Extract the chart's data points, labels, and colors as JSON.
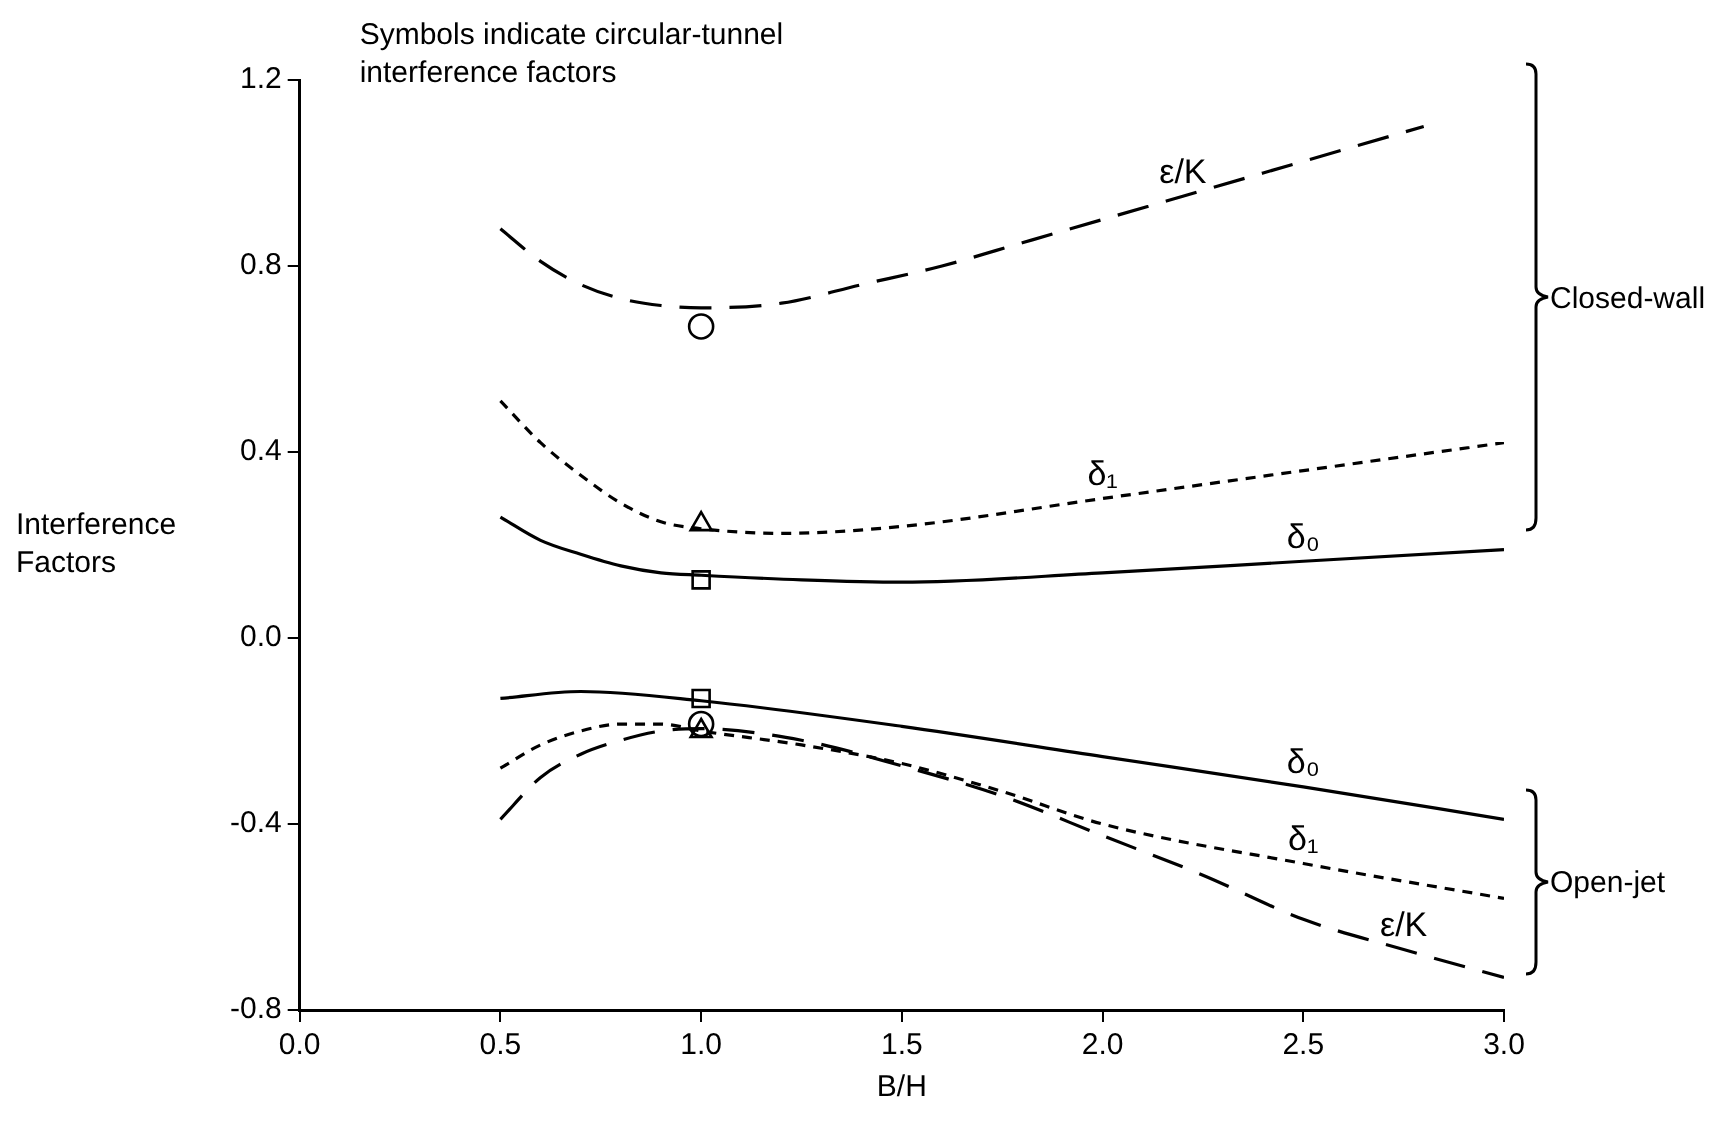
{
  "chart_data": {
    "type": "line",
    "xlabel": "B/H",
    "ylabel": "Interference\nFactors",
    "xlim": [
      0,
      3
    ],
    "xticks": [
      {
        "value": 0,
        "label": "0.0"
      },
      {
        "value": 0.5,
        "label": "0.5"
      },
      {
        "value": 1,
        "label": "1.0"
      },
      {
        "value": 1.5,
        "label": "1.5"
      },
      {
        "value": 2,
        "label": "2.0"
      },
      {
        "value": 2.5,
        "label": "2.5"
      },
      {
        "value": 3,
        "label": "3.0"
      }
    ],
    "ylim": [
      -0.8,
      1.2
    ],
    "yticks": [
      {
        "value": -0.8,
        "label": "-0.8"
      },
      {
        "value": -0.4,
        "label": "-0.4"
      },
      {
        "value": 0,
        "label": "0.0"
      },
      {
        "value": 0.4,
        "label": "0.4"
      },
      {
        "value": 0.8,
        "label": "0.8"
      },
      {
        "value": 1.2,
        "label": "1.2"
      }
    ],
    "grid": false,
    "legend": false,
    "series": [
      {
        "line_style": "dashed",
        "color": "#000000",
        "x": [
          0.5,
          0.6,
          0.7,
          0.8,
          0.9,
          1.0,
          1.2,
          1.4,
          1.6,
          1.8,
          2.0,
          2.2,
          2.4,
          2.6,
          2.8
        ],
        "values": [
          0.88,
          0.81,
          0.76,
          0.73,
          0.715,
          0.71,
          0.72,
          0.76,
          0.8,
          0.85,
          0.9,
          0.95,
          1.0,
          1.05,
          1.1
        ]
      },
      {
        "line_style": "dotted",
        "color": "#000000",
        "x": [
          0.5,
          0.6,
          0.7,
          0.8,
          0.9,
          1.0,
          1.2,
          1.5,
          2.0,
          2.5,
          3.0
        ],
        "values": [
          0.51,
          0.42,
          0.35,
          0.29,
          0.25,
          0.235,
          0.225,
          0.24,
          0.3,
          0.36,
          0.42
        ]
      },
      {
        "line_style": "solid",
        "color": "#000000",
        "x": [
          0.5,
          0.6,
          0.7,
          0.8,
          0.9,
          1.0,
          1.25,
          1.5,
          2.0,
          2.5,
          3.0
        ],
        "values": [
          0.26,
          0.21,
          0.18,
          0.155,
          0.14,
          0.135,
          0.125,
          0.12,
          0.14,
          0.165,
          0.19
        ]
      },
      {
        "line_style": "solid",
        "color": "#000000",
        "x": [
          0.5,
          0.7,
          1.0,
          1.5,
          2.0,
          2.5,
          3.0
        ],
        "values": [
          -0.13,
          -0.115,
          -0.135,
          -0.19,
          -0.255,
          -0.32,
          -0.39
        ]
      },
      {
        "line_style": "dotted",
        "color": "#000000",
        "x": [
          0.5,
          0.6,
          0.7,
          0.8,
          0.9,
          1.0,
          1.25,
          1.5,
          1.75,
          2.0,
          2.5,
          3.0
        ],
        "values": [
          -0.28,
          -0.23,
          -0.2,
          -0.185,
          -0.185,
          -0.2,
          -0.23,
          -0.27,
          -0.33,
          -0.4,
          -0.485,
          -0.56
        ]
      },
      {
        "line_style": "dashed",
        "color": "#000000",
        "x": [
          0.5,
          0.6,
          0.7,
          0.8,
          0.9,
          1.0,
          1.25,
          1.5,
          1.75,
          2.0,
          2.25,
          2.5,
          2.75,
          3.0
        ],
        "values": [
          -0.39,
          -0.3,
          -0.25,
          -0.22,
          -0.2,
          -0.195,
          -0.22,
          -0.275,
          -0.34,
          -0.425,
          -0.51,
          -0.605,
          -0.67,
          -0.73
        ]
      },
      {
        "type": "scatter",
        "marker": "circle",
        "color": "#000000",
        "x": [
          1.0,
          1.0
        ],
        "values": [
          0.67,
          -0.185
        ]
      },
      {
        "type": "scatter",
        "marker": "triangle",
        "color": "#000000",
        "x": [
          1.0,
          1.0
        ],
        "values": [
          0.245,
          -0.2
        ]
      },
      {
        "type": "scatter",
        "marker": "square",
        "color": "#000000",
        "x": [
          1.0,
          1.0
        ],
        "values": [
          0.125,
          -0.13
        ]
      }
    ],
    "annotations": [
      "Symbols indicate circular-tunnel\ninterference factors",
      "Closed-wall",
      "Open-jet",
      {
        "text": "ε/K",
        "x": 2.2,
        "y": 0.95
      },
      {
        "text": "δ₁",
        "x": 2.0,
        "y": 0.3
      },
      {
        "text": "δ₀",
        "x": 2.5,
        "y": 0.165
      },
      {
        "text": "δ₀",
        "x": 2.5,
        "y": -0.32
      },
      {
        "text": "δ₁",
        "x": 2.5,
        "y": -0.485
      },
      {
        "text": "ε/K",
        "x": 2.75,
        "y": -0.67
      }
    ]
  }
}
